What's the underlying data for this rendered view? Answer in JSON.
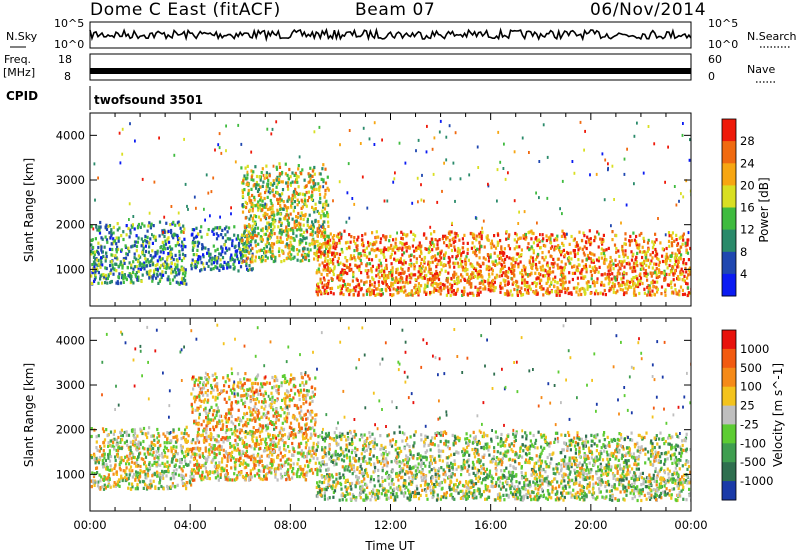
{
  "header": {
    "radar": "Dome C East (fitACF)",
    "beam": "Beam 07",
    "date": "06/Nov/2014"
  },
  "top_panels": {
    "nsky_label": "N.Sky",
    "nsky_ticks": [
      "10^5",
      "10^0"
    ],
    "nsearch_label": "N.Search",
    "freq_label": "Freq.",
    "freq_unit": "[MHz]",
    "freq_ticks": [
      "18",
      "8"
    ],
    "nave_label": "Nave",
    "nave_ticks": [
      "60",
      "0"
    ],
    "cpid_label": "CPID",
    "cpid_value": "twofsound 3501"
  },
  "chart_data": [
    {
      "type": "heatmap",
      "panel": "power",
      "ylabel": "Slant Range [km]",
      "xlabel": "",
      "y_ticks": [
        "1000",
        "2000",
        "3000",
        "4000"
      ],
      "ylim": [
        180,
        4500
      ],
      "xlim_hours": [
        0,
        24
      ],
      "colorbar_label": "Power [dB]",
      "colorbar_ticks": [
        "28",
        "24",
        "20",
        "16",
        "12",
        "8",
        "4"
      ],
      "colors": [
        "#0b1bf2",
        "#1f47b0",
        "#2a8a6a",
        "#3fbb3f",
        "#d9df22",
        "#f7a612",
        "#f06a10",
        "#ee1a0a"
      ],
      "bands": [
        {
          "from_h": 0.0,
          "to_h": 3.8,
          "low_km": 700,
          "high_km": 2100,
          "level": 0.35
        },
        {
          "from_h": 4.0,
          "to_h": 6.5,
          "low_km": 1000,
          "high_km": 2000,
          "level": 0.3
        },
        {
          "from_h": 6.0,
          "to_h": 9.5,
          "low_km": 1200,
          "high_km": 3400,
          "level": 0.55
        },
        {
          "from_h": 9.0,
          "to_h": 24.0,
          "low_km": 450,
          "high_km": 1900,
          "level": 0.75
        }
      ]
    },
    {
      "type": "heatmap",
      "panel": "velocity",
      "ylabel": "Slant Range [km]",
      "xlabel": "Time UT",
      "x_ticks": [
        "00:00",
        "04:00",
        "08:00",
        "12:00",
        "16:00",
        "20:00",
        "00:00"
      ],
      "y_ticks": [
        "1000",
        "2000",
        "3000",
        "4000"
      ],
      "ylim": [
        180,
        4500
      ],
      "xlim_hours": [
        0,
        24
      ],
      "colorbar_label": "Velocity [m s^-1]",
      "colorbar_ticks": [
        "1000",
        "500",
        "100",
        "25",
        "-25",
        "-100",
        "-500",
        "-1000"
      ],
      "colors": [
        "#1a3aa8",
        "#2f6f4f",
        "#3f9e50",
        "#5dcc33",
        "#bfbfbf",
        "#f3c31d",
        "#f58a18",
        "#f25a10",
        "#e8120c"
      ],
      "bands": [
        {
          "from_h": 0.0,
          "to_h": 4.0,
          "low_km": 700,
          "high_km": 2100,
          "level": 0.5
        },
        {
          "from_h": 4.0,
          "to_h": 9.0,
          "low_km": 900,
          "high_km": 3300,
          "level": 0.6
        },
        {
          "from_h": 9.0,
          "to_h": 24.0,
          "low_km": 450,
          "high_km": 2000,
          "level": 0.45
        }
      ]
    }
  ]
}
